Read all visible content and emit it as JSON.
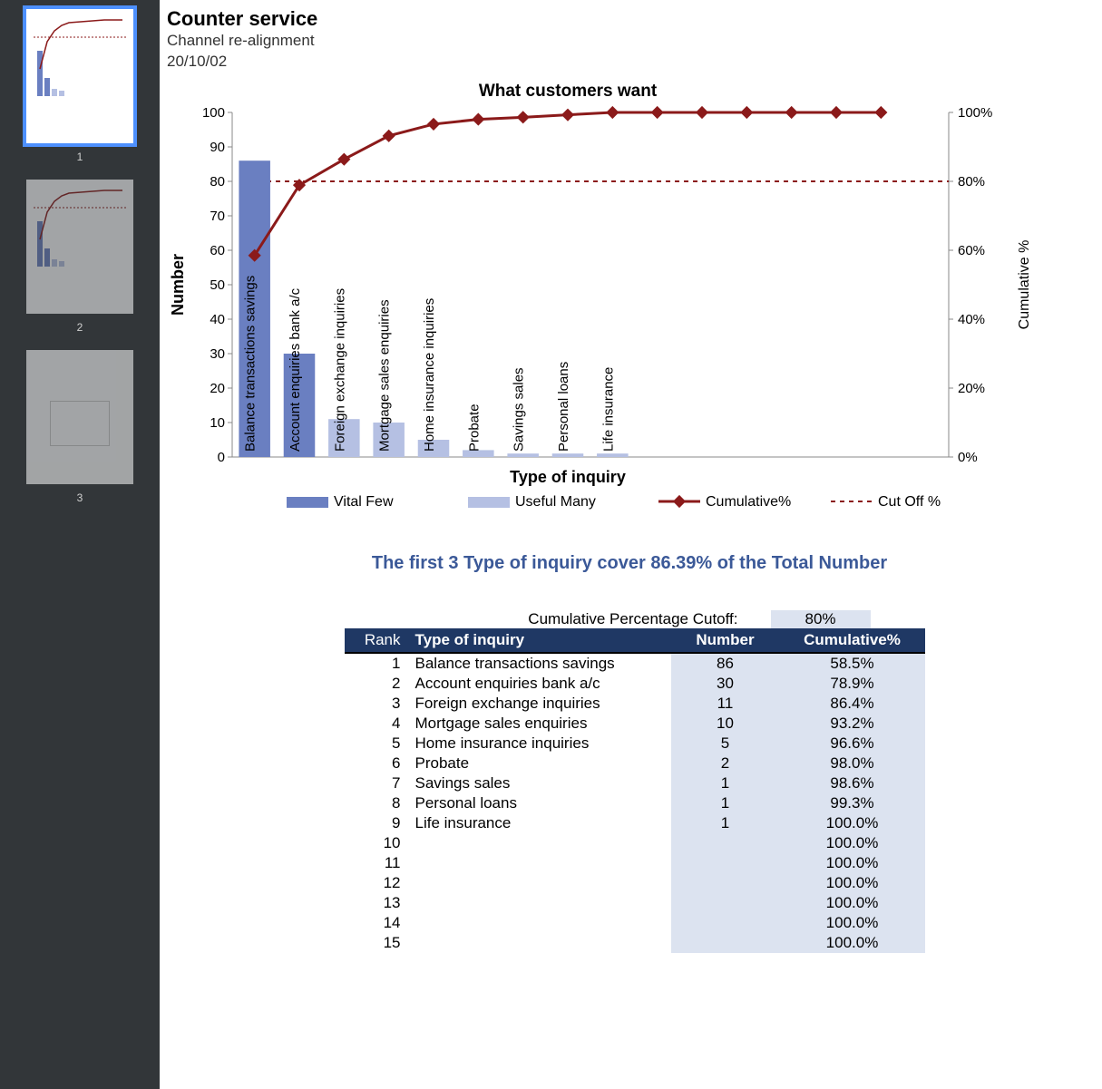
{
  "sidebar": {
    "thumbs": [
      {
        "num": "1",
        "selected": true
      },
      {
        "num": "2",
        "selected": false
      },
      {
        "num": "3",
        "selected": false
      }
    ]
  },
  "header": {
    "title": "Counter service",
    "subtitle1": "Channel re-alignment",
    "subtitle2": "20/10/02"
  },
  "chart": {
    "title": "What customers want",
    "y_label": "Number",
    "x_label": "Type of inquiry",
    "y2_label": "Cumulative %",
    "y_ticks": [
      0,
      10,
      20,
      30,
      40,
      50,
      60,
      70,
      80,
      90,
      100
    ],
    "y2_ticks": [
      "0%",
      "20%",
      "40%",
      "60%",
      "80%",
      "100%"
    ],
    "y_max": 100,
    "cutoff_pct": 80,
    "vital_color": "#6a7fc1",
    "useful_color": "#b5c0e3",
    "line_color": "#8b1a1a",
    "bars": [
      {
        "label": "Balance transactions savings",
        "value": 86,
        "vital": true,
        "cum": 58.5
      },
      {
        "label": "Account enquiries bank a/c",
        "value": 30,
        "vital": true,
        "cum": 78.9
      },
      {
        "label": "Foreign exchange inquiries",
        "value": 11,
        "vital": false,
        "cum": 86.4
      },
      {
        "label": "Mortgage sales enquiries",
        "value": 10,
        "vital": false,
        "cum": 93.2
      },
      {
        "label": "Home insurance inquiries",
        "value": 5,
        "vital": false,
        "cum": 96.6
      },
      {
        "label": "Probate",
        "value": 2,
        "vital": false,
        "cum": 98.0
      },
      {
        "label": "Savings sales",
        "value": 1,
        "vital": false,
        "cum": 98.6
      },
      {
        "label": "Personal loans",
        "value": 1,
        "vital": false,
        "cum": 99.3
      },
      {
        "label": "Life insurance",
        "value": 1,
        "vital": false,
        "cum": 100.0
      },
      {
        "label": "",
        "value": 0,
        "vital": false,
        "cum": 100.0
      },
      {
        "label": "",
        "value": 0,
        "vital": false,
        "cum": 100.0
      },
      {
        "label": "",
        "value": 0,
        "vital": false,
        "cum": 100.0
      },
      {
        "label": "",
        "value": 0,
        "vital": false,
        "cum": 100.0
      },
      {
        "label": "",
        "value": 0,
        "vital": false,
        "cum": 100.0
      },
      {
        "label": "",
        "value": 0,
        "vital": false,
        "cum": 100.0
      }
    ],
    "legend": {
      "vital": "Vital Few",
      "useful": "Useful Many",
      "cum": "Cumulative%",
      "cutoff": "Cut Off %"
    }
  },
  "summary": "The first 3 Type of inquiry cover 86.39% of the Total Number",
  "cutoff_row": {
    "label": "Cumulative Percentage Cutoff:",
    "value": "80%"
  },
  "table": {
    "headers": {
      "rank": "Rank",
      "type": "Type of inquiry",
      "number": "Number",
      "cum": "Cumulative%"
    },
    "rows": [
      {
        "rank": "1",
        "type": "Balance transactions savings",
        "number": "86",
        "cum": "58.5%"
      },
      {
        "rank": "2",
        "type": "Account enquiries bank a/c",
        "number": "30",
        "cum": "78.9%"
      },
      {
        "rank": "3",
        "type": "Foreign exchange inquiries",
        "number": "11",
        "cum": "86.4%"
      },
      {
        "rank": "4",
        "type": "Mortgage sales enquiries",
        "number": "10",
        "cum": "93.2%"
      },
      {
        "rank": "5",
        "type": "Home insurance inquiries",
        "number": "5",
        "cum": "96.6%"
      },
      {
        "rank": "6",
        "type": "Probate",
        "number": "2",
        "cum": "98.0%"
      },
      {
        "rank": "7",
        "type": "Savings sales",
        "number": "1",
        "cum": "98.6%"
      },
      {
        "rank": "8",
        "type": "Personal loans",
        "number": "1",
        "cum": "99.3%"
      },
      {
        "rank": "9",
        "type": "Life insurance",
        "number": "1",
        "cum": "100.0%"
      },
      {
        "rank": "10",
        "type": "",
        "number": "",
        "cum": "100.0%"
      },
      {
        "rank": "11",
        "type": "",
        "number": "",
        "cum": "100.0%"
      },
      {
        "rank": "12",
        "type": "",
        "number": "",
        "cum": "100.0%"
      },
      {
        "rank": "13",
        "type": "",
        "number": "",
        "cum": "100.0%"
      },
      {
        "rank": "14",
        "type": "",
        "number": "",
        "cum": "100.0%"
      },
      {
        "rank": "15",
        "type": "",
        "number": "",
        "cum": "100.0%"
      }
    ]
  }
}
